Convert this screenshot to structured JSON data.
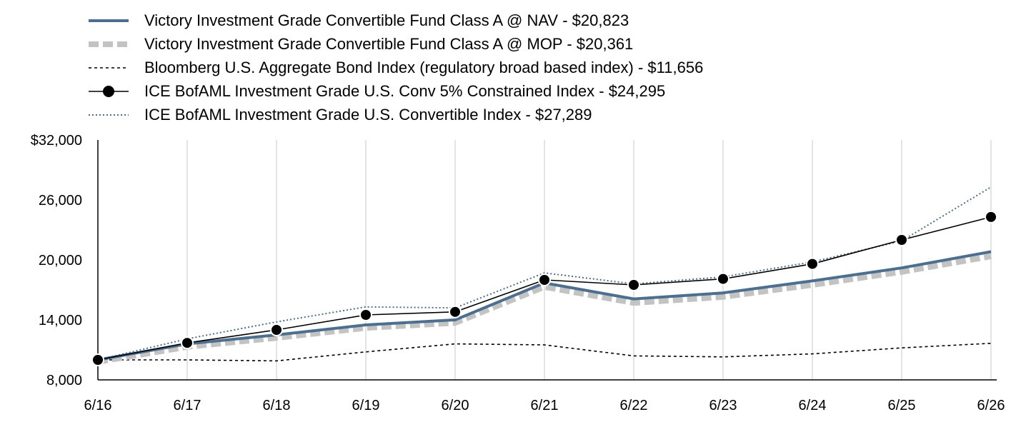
{
  "chart_data": {
    "type": "line",
    "categories": [
      "6/16",
      "6/17",
      "6/18",
      "6/19",
      "6/20",
      "6/21",
      "6/22",
      "6/23",
      "6/24",
      "6/25",
      "6/26"
    ],
    "y_tick_labels": [
      "$32,000",
      "26,000",
      "20,000",
      "14,000",
      "8,000"
    ],
    "y_ticks": [
      32000,
      26000,
      20000,
      14000,
      8000
    ],
    "ylim": [
      8000,
      32000
    ],
    "grid": "vertical",
    "legend_position": "top",
    "series": [
      {
        "name": "Victory Investment Grade Convertible Fund Class A @ NAV - $20,823",
        "style": "nav",
        "color": "#4d6e8f",
        "values": [
          10000,
          11600,
          12500,
          13500,
          14000,
          17700,
          16100,
          16700,
          17900,
          19200,
          20823
        ]
      },
      {
        "name": "Victory Investment Grade Convertible Fund Class A @ MOP - $20,361",
        "style": "mop",
        "color": "#c3c3c3",
        "values": [
          9800,
          11300,
          12200,
          13200,
          13700,
          17300,
          15700,
          16300,
          17500,
          18800,
          20361
        ]
      },
      {
        "name": "Bloomberg U.S. Aggregate Bond Index (regulatory broad based index) - $11,656",
        "style": "bond",
        "color": "#000000",
        "values": [
          10000,
          10000,
          9900,
          10800,
          11600,
          11500,
          10400,
          10300,
          10600,
          11200,
          11656
        ]
      },
      {
        "name": "ICE BofAML Investment Grade U.S. Conv 5% Constrained Index - $24,295",
        "style": "conv5",
        "color": "#000000",
        "values": [
          10000,
          11700,
          13000,
          14500,
          14800,
          18000,
          17500,
          18100,
          19600,
          22000,
          24295
        ]
      },
      {
        "name": "ICE BofAML Investment Grade U.S. Convertible Index - $27,289",
        "style": "convidx",
        "color": "#4d6e8f",
        "values": [
          10000,
          12100,
          13800,
          15300,
          15200,
          18700,
          17600,
          18300,
          19800,
          21900,
          27289
        ]
      }
    ]
  }
}
